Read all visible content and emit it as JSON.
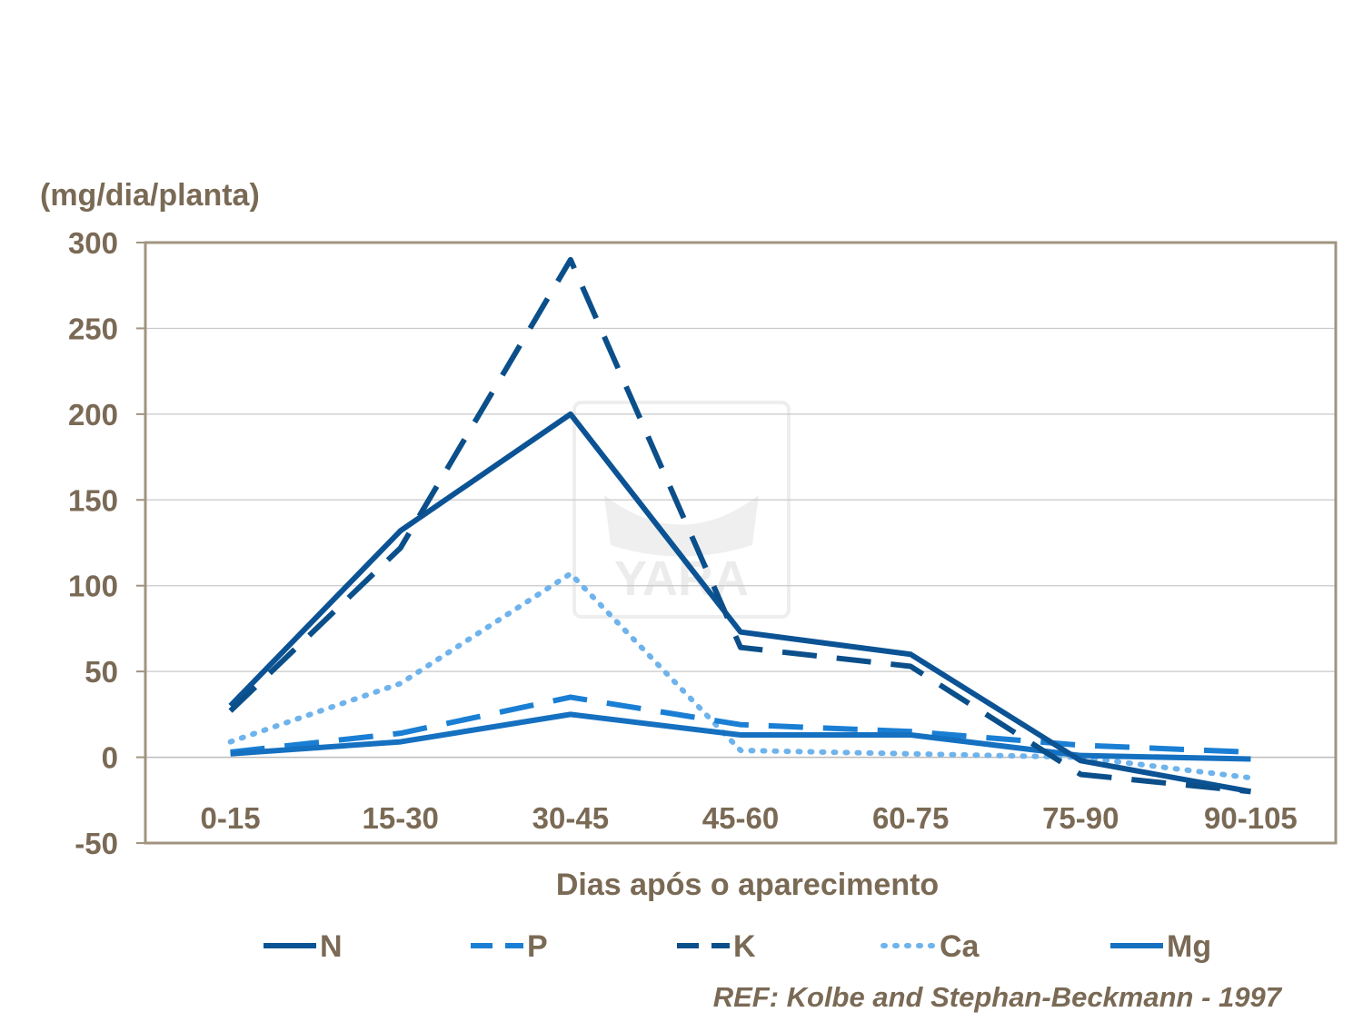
{
  "chart_data": {
    "type": "line",
    "title": "",
    "xlabel": "Dias após o aparecimento",
    "ylabel": "(mg/dia/planta)",
    "ylim": [
      -50,
      300
    ],
    "yticks": [
      -50,
      0,
      50,
      100,
      150,
      200,
      250,
      300
    ],
    "grid": true,
    "legend": "bottom",
    "categories": [
      "0-15",
      "15-30",
      "30-45",
      "45-60",
      "60-75",
      "75-90",
      "90-105"
    ],
    "series": [
      {
        "name": "N",
        "color": "#0b5394",
        "style": "solid",
        "values": [
          30,
          132,
          200,
          73,
          60,
          -2,
          -20
        ]
      },
      {
        "name": "P",
        "color": "#1a7fd4",
        "style": "dash",
        "values": [
          3,
          14,
          35,
          19,
          15,
          7,
          3
        ]
      },
      {
        "name": "K",
        "color": "#0b4f8a",
        "style": "dash",
        "values": [
          27,
          122,
          290,
          64,
          53,
          -10,
          -20
        ]
      },
      {
        "name": "Ca",
        "color": "#6fb3ec",
        "style": "dot",
        "values": [
          9,
          43,
          107,
          4,
          2,
          0,
          -12
        ]
      },
      {
        "name": "Mg",
        "color": "#1570c0",
        "style": "solid",
        "values": [
          2,
          9,
          25,
          13,
          13,
          1,
          -1
        ]
      }
    ]
  },
  "watermark": "YARA",
  "reference": "REF: Kolbe and Stephan-Beckmann  - 1997"
}
